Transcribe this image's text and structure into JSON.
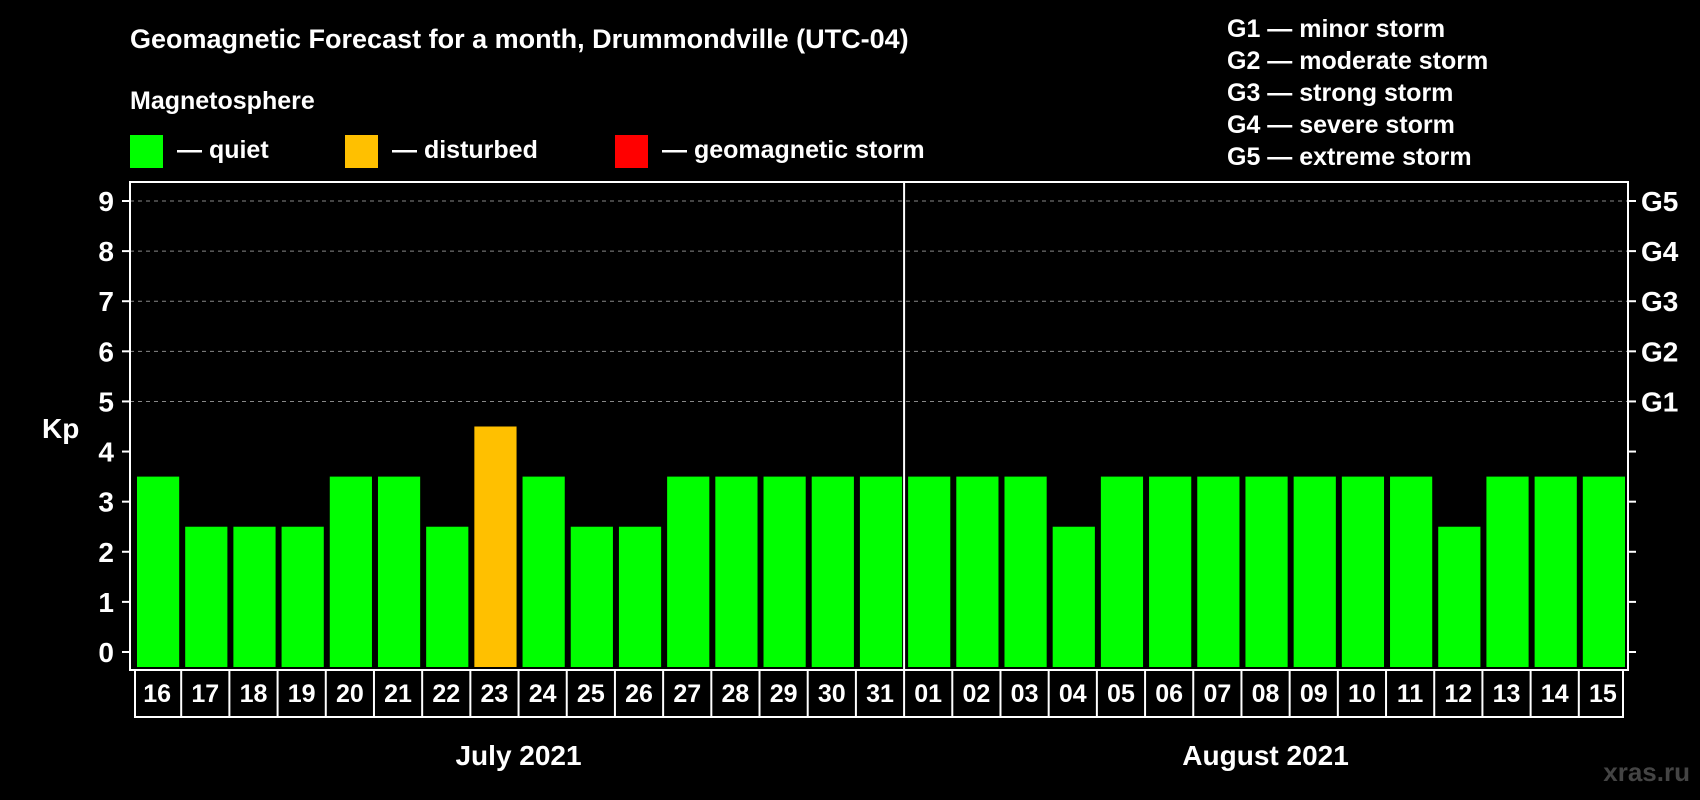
{
  "chart_data": {
    "type": "bar",
    "title": "Geomagnetic Forecast for a month, Drummondville (UTC-04)",
    "legend_heading": "Magnetosphere",
    "legend": [
      {
        "label": "— quiet",
        "color": "#00ff00"
      },
      {
        "label": "— disturbed",
        "color": "#ffc000"
      },
      {
        "label": "— geomagnetic storm",
        "color": "#ff0000"
      }
    ],
    "storm_scale": [
      "G1 — minor storm",
      "G2 — moderate storm",
      "G3 — strong storm",
      "G4 — severe storm",
      "G5 — extreme storm"
    ],
    "ylabel": "Kp",
    "ylim": [
      0,
      9
    ],
    "yticks": [
      "0",
      "1",
      "2",
      "3",
      "4",
      "5",
      "6",
      "7",
      "8",
      "9"
    ],
    "right_axis_labels": [
      {
        "value": 5,
        "label": "G1"
      },
      {
        "value": 6,
        "label": "G2"
      },
      {
        "value": 7,
        "label": "G3"
      },
      {
        "value": 8,
        "label": "G4"
      },
      {
        "value": 9,
        "label": "G5"
      }
    ],
    "grid": true,
    "categories": [
      "16",
      "17",
      "18",
      "19",
      "20",
      "21",
      "22",
      "23",
      "24",
      "25",
      "26",
      "27",
      "28",
      "29",
      "30",
      "31",
      "01",
      "02",
      "03",
      "04",
      "05",
      "06",
      "07",
      "08",
      "09",
      "10",
      "11",
      "12",
      "13",
      "14",
      "15"
    ],
    "values": [
      3,
      2,
      2,
      2,
      3,
      3,
      2,
      4,
      3,
      2,
      2,
      3,
      3,
      3,
      3,
      3,
      3,
      3,
      3,
      2,
      3,
      3,
      3,
      3,
      3,
      3,
      3,
      2,
      3,
      3,
      3
    ],
    "status": [
      "quiet",
      "quiet",
      "quiet",
      "quiet",
      "quiet",
      "quiet",
      "quiet",
      "disturbed",
      "quiet",
      "quiet",
      "quiet",
      "quiet",
      "quiet",
      "quiet",
      "quiet",
      "quiet",
      "quiet",
      "quiet",
      "quiet",
      "quiet",
      "quiet",
      "quiet",
      "quiet",
      "quiet",
      "quiet",
      "quiet",
      "quiet",
      "quiet",
      "quiet",
      "quiet",
      "quiet"
    ],
    "status_colors": {
      "quiet": "#00ff00",
      "disturbed": "#ffc000",
      "storm": "#ff0000"
    },
    "month_groups": [
      {
        "label": "July 2021",
        "count": 16
      },
      {
        "label": "August 2021",
        "count": 15
      }
    ]
  },
  "watermark": "xras.ru"
}
